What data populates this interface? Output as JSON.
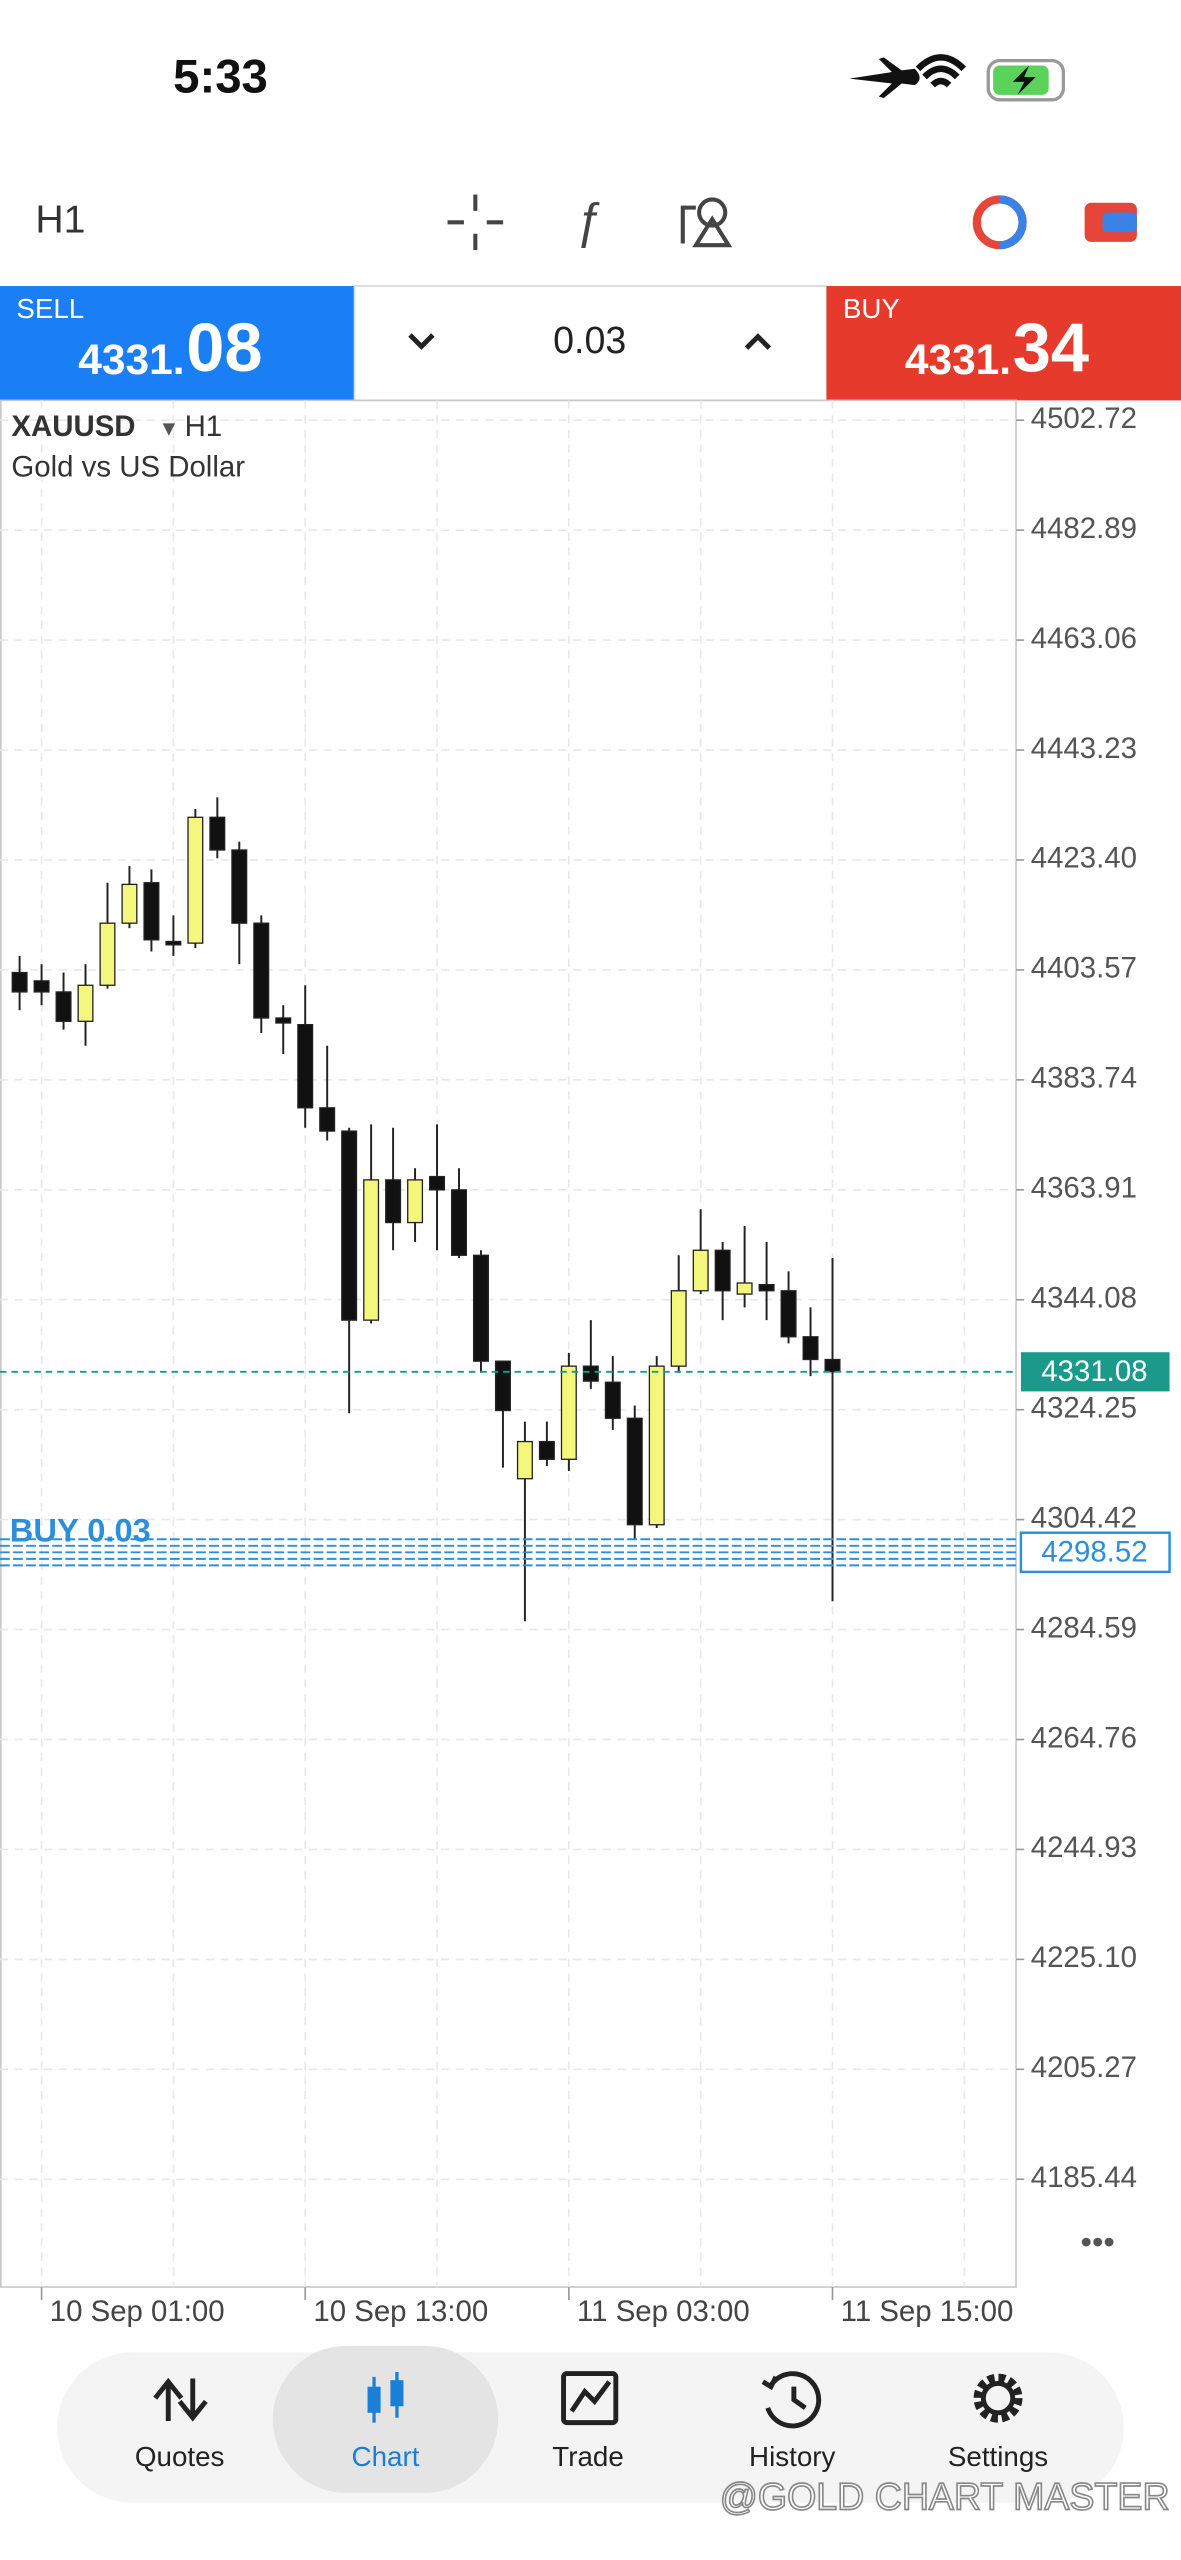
{
  "status_bar": {
    "time": "5:33"
  },
  "toolbar": {
    "timeframe": "H1"
  },
  "trade_panel": {
    "sell": {
      "label": "SELL",
      "price_main": "4331.",
      "price_big": "08"
    },
    "volume": "0.03",
    "buy": {
      "label": "BUY",
      "price_main": "4331.",
      "price_big": "34"
    }
  },
  "chart_header": {
    "symbol": "XAUUSD",
    "timeframe": "H1",
    "description": "Gold vs US Dollar"
  },
  "nav": [
    "Quotes",
    "Chart",
    "Trade",
    "History",
    "Settings"
  ],
  "watermark": "@GOLD CHART MASTER",
  "more": "•••",
  "chart_data": {
    "type": "candlestick",
    "categories": [
      null,
      "10 Sep 01:00",
      null,
      null,
      null,
      null,
      null,
      null,
      null,
      null,
      null,
      null,
      null,
      "10 Sep 13:00",
      null,
      null,
      null,
      null,
      null,
      null,
      null,
      null,
      null,
      null,
      null,
      "11 Sep 03:00",
      null,
      null,
      null,
      null,
      null,
      null,
      null,
      null,
      null,
      null,
      null,
      "11 Sep 15:00"
    ],
    "open": [
      4403.1,
      4401.6,
      4399.6,
      4394.3,
      4400.8,
      4412.0,
      4419.3,
      4408.7,
      4408.4,
      4431.1,
      4425.2,
      4412.0,
      4394.9,
      4393.7,
      4378.7,
      4374.5,
      4340.4,
      4365.7,
      4358.0,
      4366.3,
      4363.9,
      4352.1,
      4333.0,
      4311.8,
      4318.5,
      4315.3,
      4332.1,
      4329.2,
      4322.7,
      4303.5,
      4332.1,
      4345.7,
      4353.0,
      4345.1,
      4346.8,
      4345.7,
      4337.4,
      4333.3
    ],
    "high": [
      4406.1,
      4404.6,
      4403.1,
      4404.6,
      4419.3,
      4422.3,
      4421.7,
      4413.4,
      4432.6,
      4434.7,
      4426.7,
      4413.4,
      4397.2,
      4400.8,
      4389.9,
      4375.1,
      4375.7,
      4375.1,
      4367.8,
      4375.7,
      4367.8,
      4353.0,
      4333.0,
      4322.1,
      4322.1,
      4334.5,
      4340.4,
      4333.9,
      4325.0,
      4333.9,
      4352.1,
      4360.4,
      4354.5,
      4357.4,
      4354.5,
      4349.2,
      4342.7,
      4351.6
    ],
    "low": [
      4396.3,
      4397.2,
      4392.8,
      4389.9,
      4400.2,
      4411.1,
      4406.9,
      4406.1,
      4407.5,
      4423.7,
      4404.6,
      4392.2,
      4388.4,
      4375.1,
      4372.8,
      4323.6,
      4339.8,
      4353.0,
      4354.5,
      4353.0,
      4351.6,
      4330.9,
      4313.8,
      4286.1,
      4314.1,
      4313.2,
      4328.0,
      4320.6,
      4300.9,
      4302.9,
      4330.9,
      4345.1,
      4340.4,
      4342.7,
      4340.4,
      4336.2,
      4330.3,
      4289.7
    ],
    "close": [
      4399.6,
      4399.6,
      4394.3,
      4400.8,
      4412.0,
      4419.0,
      4409.0,
      4408.1,
      4431.1,
      4425.2,
      4412.0,
      4394.9,
      4394.0,
      4378.7,
      4374.5,
      4340.4,
      4365.7,
      4358.0,
      4365.7,
      4363.9,
      4352.1,
      4333.0,
      4324.1,
      4318.5,
      4315.3,
      4332.1,
      4329.4,
      4322.7,
      4303.5,
      4332.1,
      4345.7,
      4353.0,
      4345.7,
      4347.1,
      4345.7,
      4337.4,
      4333.3,
      4331.08
    ],
    "up_color": "#f3f87c",
    "down_color": "#111111",
    "ylim": [
      4166.0,
      4506.3
    ],
    "yticks": [
      4502.72,
      4482.89,
      4463.06,
      4443.23,
      {
        "value": 4423.4,
        "label": "4423.40"
      },
      4403.57,
      4383.74,
      4363.91,
      4344.08,
      4324.25,
      4304.42,
      4284.59,
      4264.76,
      4244.93,
      {
        "value": 4225.1,
        "label": "4225.10"
      },
      4205.27,
      4185.44
    ],
    "grid": true,
    "price_lines": [
      {
        "value": 4331.08,
        "color": "#1b9a8c"
      },
      {
        "label": "BUY 0.03",
        "value": 4298.52,
        "color": "#2d8fdc"
      }
    ]
  }
}
